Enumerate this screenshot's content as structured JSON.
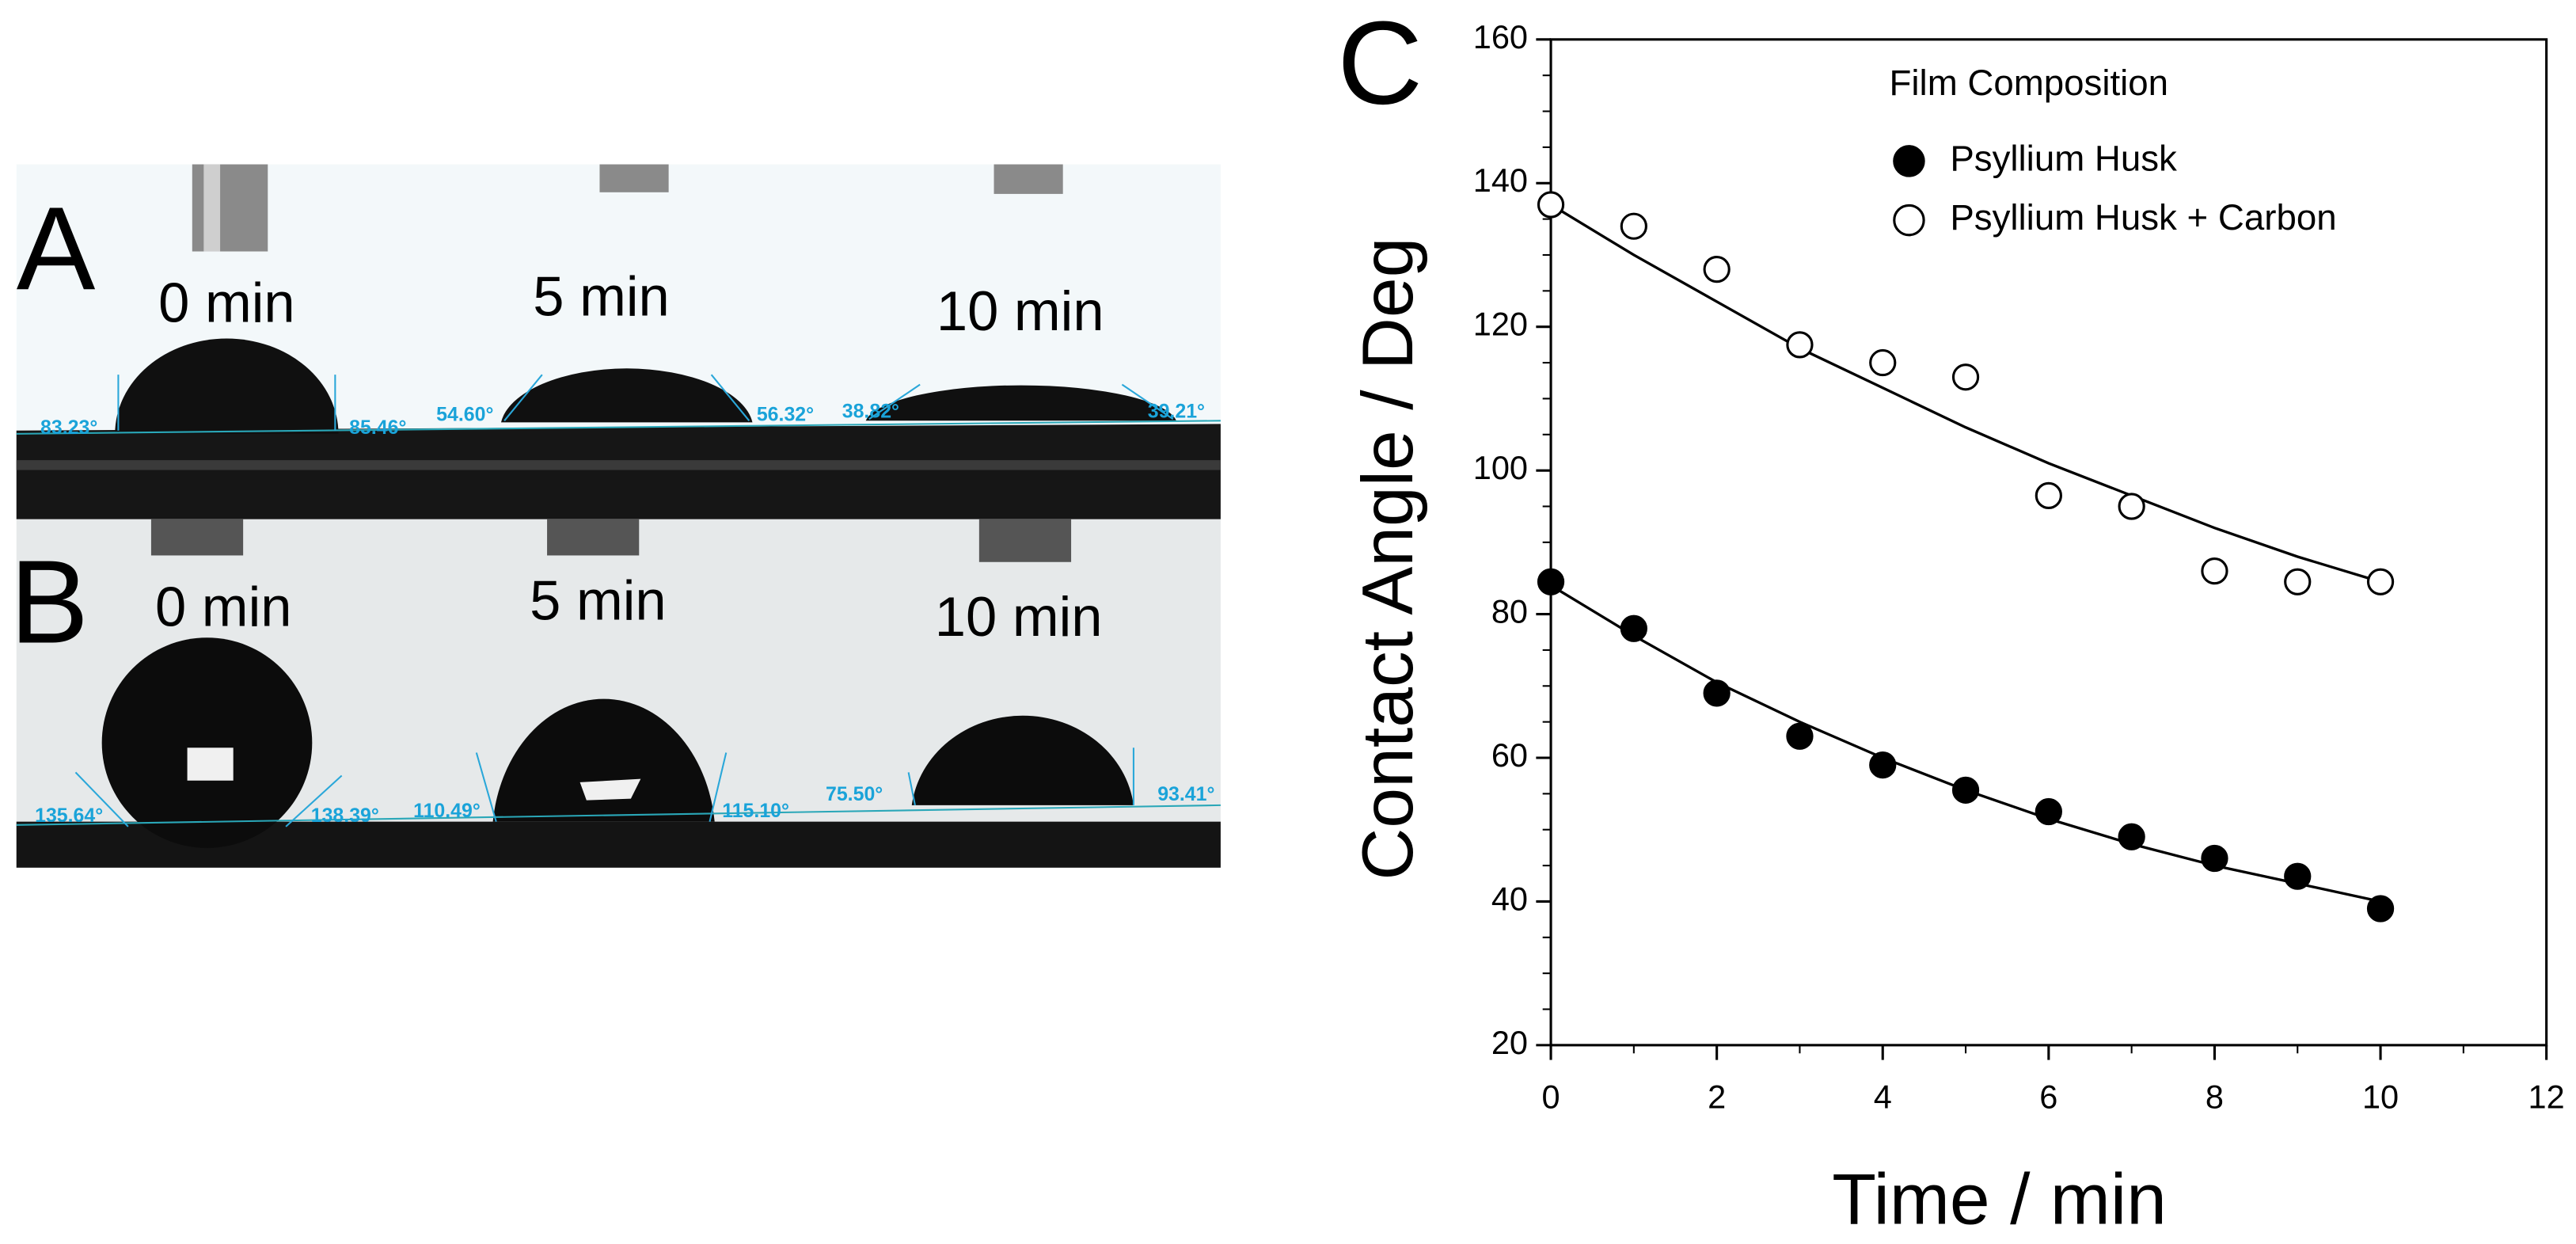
{
  "panels": [
    {
      "label": "A",
      "times": [
        "0 min",
        "5 min",
        "10 min"
      ],
      "angles": [
        "83.23°",
        "85.46°",
        "54.60°",
        "56.32°",
        "38.82°",
        "39.21°"
      ]
    },
    {
      "label": "B",
      "times": [
        "0 min",
        "5 min",
        "10 min"
      ],
      "angles": [
        "135.64°",
        "138.39°",
        "110.49°",
        "115.10°",
        "75.50°",
        "93.41°"
      ]
    }
  ],
  "chart_data": {
    "type": "scatter",
    "panel_label": "C",
    "xlabel": "Time / min",
    "ylabel": "Contact Angle / Deg",
    "legend_title": "Film Composition",
    "legend": "upper right",
    "x": [
      0,
      1,
      2,
      3,
      4,
      5,
      6,
      7,
      8,
      9,
      10
    ],
    "series": [
      {
        "name": "Psyllium Husk",
        "color": "#000000",
        "marker": "filled",
        "values": [
          84.5,
          78,
          69,
          63,
          59,
          55.5,
          52.5,
          49,
          46,
          43.5,
          39
        ]
      },
      {
        "name": "Psyllium Husk + Carbon",
        "color": "#000000",
        "marker": "open",
        "values": [
          137,
          134,
          128,
          117.5,
          115,
          113,
          96.5,
          95,
          86,
          84.5,
          84.5
        ]
      }
    ],
    "fits": [
      {
        "values": [
          84,
          77,
          70.5,
          65,
          60,
          55.5,
          51.5,
          48,
          45,
          42.5,
          40
        ]
      },
      {
        "values": [
          137,
          130,
          123.5,
          117,
          111.5,
          106,
          101,
          96.5,
          92,
          88,
          84.5
        ]
      }
    ],
    "xlim": [
      0,
      12
    ],
    "xticks": [
      0,
      2,
      4,
      6,
      8,
      10,
      12
    ],
    "xminorticks": [
      1,
      3,
      5,
      7,
      9,
      11
    ],
    "ylim": [
      20,
      160
    ],
    "yticks": [
      20,
      40,
      60,
      80,
      100,
      120,
      140,
      160
    ],
    "yminorticks": [
      25,
      30,
      35,
      45,
      50,
      55,
      65,
      70,
      75,
      85,
      90,
      95,
      105,
      110,
      115,
      125,
      130,
      135,
      145,
      150,
      155
    ]
  }
}
